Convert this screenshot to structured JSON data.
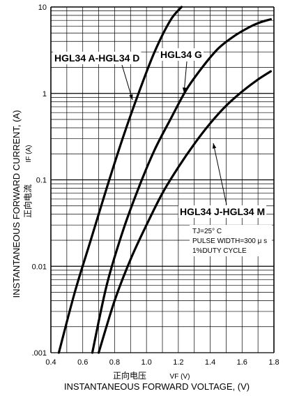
{
  "chart_data": {
    "type": "line",
    "x_scale": "linear",
    "y_scale": "log",
    "xlim": [
      0.4,
      1.8
    ],
    "ylim": [
      0.001,
      10
    ],
    "x_ticks": [
      "0.4",
      "0.6",
      "0.8",
      "1.0",
      "1.2",
      "1.4",
      "1.6",
      "1.8"
    ],
    "y_ticks": [
      ".001",
      "0.01",
      "0.1",
      "1",
      "10"
    ],
    "grid": true,
    "xlabel": "INSTANTANEOUS FORWARD VOLTAGE, (V)",
    "xlabel_cn": "正向电压",
    "xlabel_symbol": "VF (V)",
    "ylabel": "INSTANTANEOUS FORWARD CURRENT, (A)",
    "ylabel_cn": "正向电流",
    "ylabel_symbol": "IF (A)",
    "conditions": [
      "TJ=25° C",
      "PULSE WIDTH=300 μ s",
      "1%DUTY CYCLE"
    ],
    "series": [
      {
        "name": "HGL34 A-HGL34 D",
        "x": [
          0.45,
          0.55,
          0.65,
          0.75,
          0.85,
          0.95,
          1.05,
          1.15,
          1.22
        ],
        "y": [
          0.001,
          0.005,
          0.02,
          0.08,
          0.3,
          1,
          3,
          7,
          10
        ]
      },
      {
        "name": "HGL34 G",
        "x": [
          0.66,
          0.75,
          0.85,
          0.95,
          1.05,
          1.15,
          1.25,
          1.35,
          1.45,
          1.55,
          1.65,
          1.72,
          1.78
        ],
        "y": [
          0.001,
          0.006,
          0.025,
          0.08,
          0.22,
          0.5,
          1.1,
          2,
          3.3,
          4.6,
          5.9,
          6.7,
          7.2
        ]
      },
      {
        "name": "HGL34 J-HGL34 M",
        "x": [
          0.7,
          0.8,
          0.9,
          1.0,
          1.1,
          1.2,
          1.3,
          1.4,
          1.5,
          1.6,
          1.7,
          1.78
        ],
        "y": [
          0.001,
          0.004,
          0.012,
          0.03,
          0.07,
          0.14,
          0.26,
          0.45,
          0.72,
          1.05,
          1.45,
          1.8
        ]
      }
    ]
  }
}
